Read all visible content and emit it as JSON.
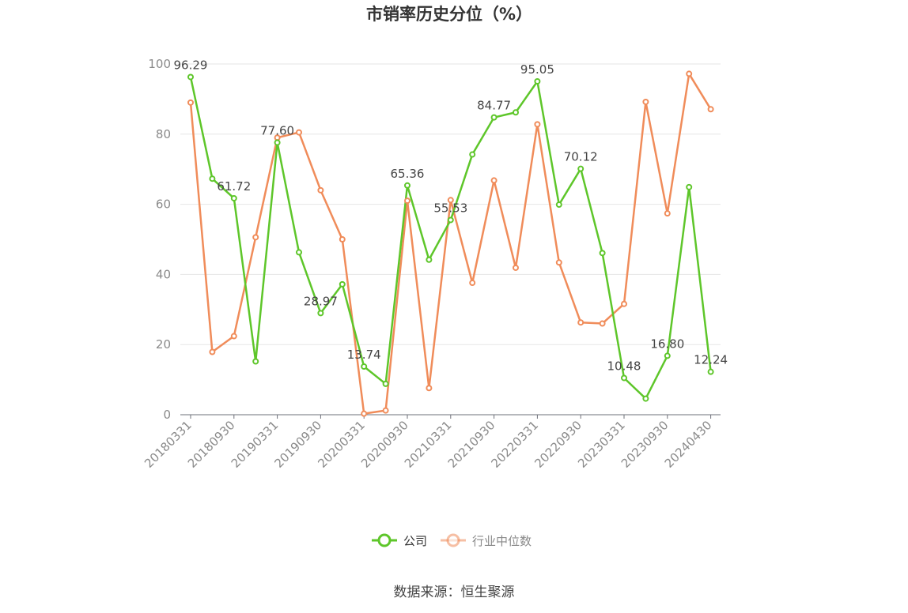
{
  "chart_data": {
    "type": "line",
    "title": "市销率历史分位（%）",
    "source": "数据来源：恒生聚源",
    "ylim": [
      0,
      100
    ],
    "yticks": [
      0,
      20,
      40,
      60,
      80,
      100
    ],
    "x": [
      "20180331",
      "20180630",
      "20180930",
      "20181231",
      "20190331",
      "20190630",
      "20190930",
      "20191231",
      "20200331",
      "20200630",
      "20200930",
      "20201231",
      "20210331",
      "20210630",
      "20210930",
      "20211231",
      "20220331",
      "20220630",
      "20220930",
      "20221231",
      "20230331",
      "20230630",
      "20230930",
      "20231231",
      "20240430"
    ],
    "xtick_labels": [
      "20180331",
      "20180930",
      "20190331",
      "20190930",
      "20200331",
      "20200930",
      "20210331",
      "20210930",
      "20220331",
      "20220930",
      "20230331",
      "20230930",
      "20240430"
    ],
    "grid": true,
    "legend_position": "bottom-center",
    "series": [
      {
        "name": "公司",
        "color": "#5ec62a",
        "values": [
          96.29,
          67.3,
          61.72,
          15.2,
          77.6,
          46.3,
          28.97,
          37.2,
          13.74,
          8.8,
          65.36,
          44.2,
          55.53,
          74.2,
          84.77,
          86.2,
          95.05,
          59.9,
          70.12,
          46.1,
          10.48,
          4.6,
          16.8,
          64.9,
          12.24
        ],
        "label_indices": [
          0,
          2,
          4,
          6,
          8,
          10,
          12,
          14,
          16,
          18,
          20,
          22,
          24
        ]
      },
      {
        "name": "行业中位数",
        "color": "#f08c5a",
        "values": [
          89.0,
          17.9,
          22.4,
          50.6,
          79.0,
          80.5,
          64.0,
          50.0,
          0.3,
          1.2,
          61.0,
          7.6,
          61.2,
          37.6,
          66.8,
          41.9,
          82.8,
          43.4,
          26.3,
          26.0,
          31.6,
          89.2,
          57.4,
          97.2,
          87.1
        ]
      }
    ]
  }
}
